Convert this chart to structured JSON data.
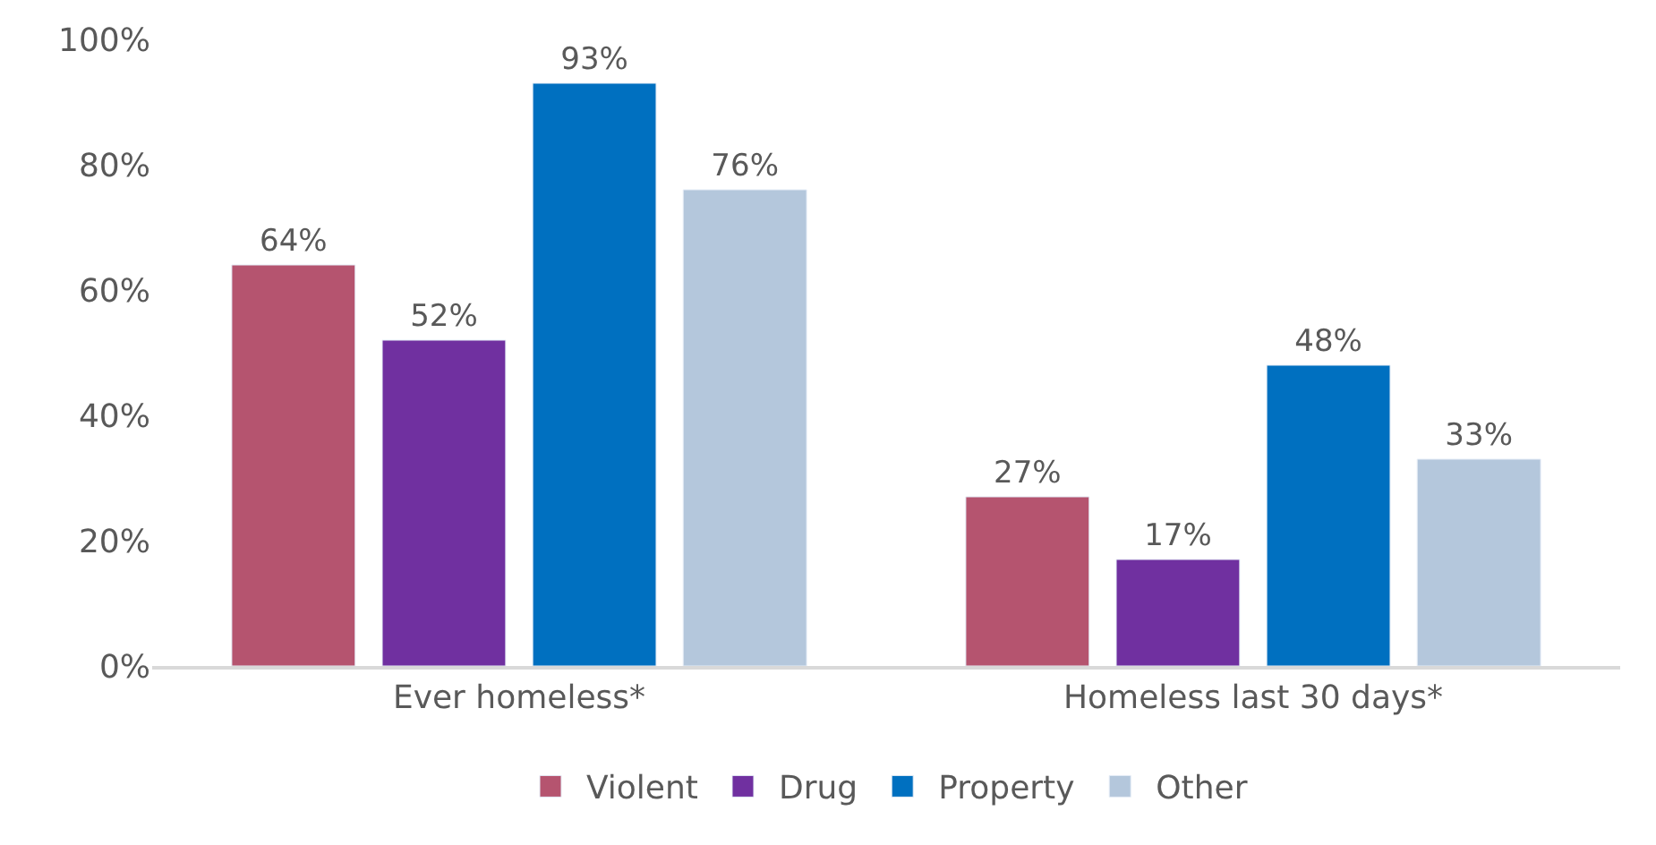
{
  "chart_data": {
    "type": "bar",
    "categories": [
      "Ever homeless*",
      "Homeless last 30 days*"
    ],
    "series": [
      {
        "name": "Violent",
        "color": "#b5546f",
        "values": [
          64,
          27
        ],
        "value_labels": [
          "64%",
          "27%"
        ]
      },
      {
        "name": "Drug",
        "color": "#7030a0",
        "values": [
          52,
          17
        ],
        "value_labels": [
          "52%",
          "17%"
        ]
      },
      {
        "name": "Property",
        "color": "#0070c0",
        "values": [
          93,
          48
        ],
        "value_labels": [
          "93%",
          "48%"
        ]
      },
      {
        "name": "Other",
        "color": "#b4c7dc",
        "values": [
          76,
          33
        ],
        "value_labels": [
          "76%",
          "33%"
        ]
      }
    ],
    "ylim": [
      0,
      100
    ],
    "yticks": [
      {
        "value": 0,
        "label": "0%"
      },
      {
        "value": 20,
        "label": "20%"
      },
      {
        "value": 40,
        "label": "40%"
      },
      {
        "value": 60,
        "label": "60%"
      },
      {
        "value": 80,
        "label": "80%"
      },
      {
        "value": 100,
        "label": "100%"
      }
    ],
    "legend": "bottom"
  }
}
